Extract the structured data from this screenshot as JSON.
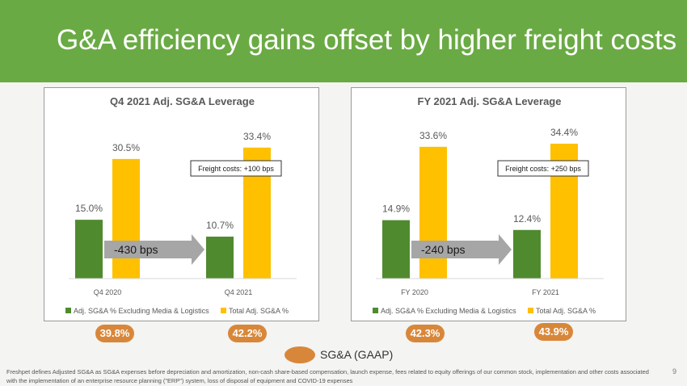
{
  "slide": {
    "title": "G&A efficiency gains offset by higher freight costs",
    "page_number": "9",
    "footnote": "Freshpet defines Adjusted SG&A as SG&A expenses before depreciation and amortization, non-cash share-based compensation, launch expense, fees related to equity offerings of our common stock, implementation and other costs associated with the implementation of an enterprise resource planning (\"ERP\") system, loss of disposal of equipment and COVID-19 expenses",
    "gaap_legend": "SG&A (GAAP)"
  },
  "colors": {
    "header": "#6aaa44",
    "green_series": "#4f8a2f",
    "yellow_series": "#ffc000",
    "pill": "#d8873a",
    "arrow": "#a6a6a6"
  },
  "chart_data": [
    {
      "type": "bar",
      "title": "Q4 2021 Adj. SG&A Leverage",
      "categories": [
        "Q4 2020",
        "Q4 2021"
      ],
      "series": [
        {
          "name": "Adj. SG&A % Excluding Media & Logistics",
          "values": [
            15.0,
            10.7
          ],
          "labels": [
            "15.0%",
            "10.7%"
          ]
        },
        {
          "name": "Total Adj. SG&A %",
          "values": [
            30.5,
            33.4
          ],
          "labels": [
            "30.5%",
            "33.4%"
          ]
        }
      ],
      "ylim": [
        0,
        35
      ],
      "arrow_label": "-430 bps",
      "callout": "Freight costs: +100 bps",
      "gaap_values": [
        "39.8%",
        "42.2%"
      ],
      "grid": false,
      "legend_position": "bottom"
    },
    {
      "type": "bar",
      "title": "FY 2021 Adj. SG&A Leverage",
      "categories": [
        "FY 2020",
        "FY 2021"
      ],
      "series": [
        {
          "name": "Adj. SG&A % Excluding Media & Logistics",
          "values": [
            14.9,
            12.4
          ],
          "labels": [
            "14.9%",
            "12.4%"
          ]
        },
        {
          "name": "Total Adj. SG&A %",
          "values": [
            33.6,
            34.4
          ],
          "labels": [
            "33.6%",
            "34.4%"
          ]
        }
      ],
      "ylim": [
        0,
        35
      ],
      "arrow_label": "-240 bps",
      "callout": "Freight costs: +250 bps",
      "gaap_values": [
        "42.3%",
        "43.9%"
      ],
      "grid": false,
      "legend_position": "bottom"
    }
  ]
}
